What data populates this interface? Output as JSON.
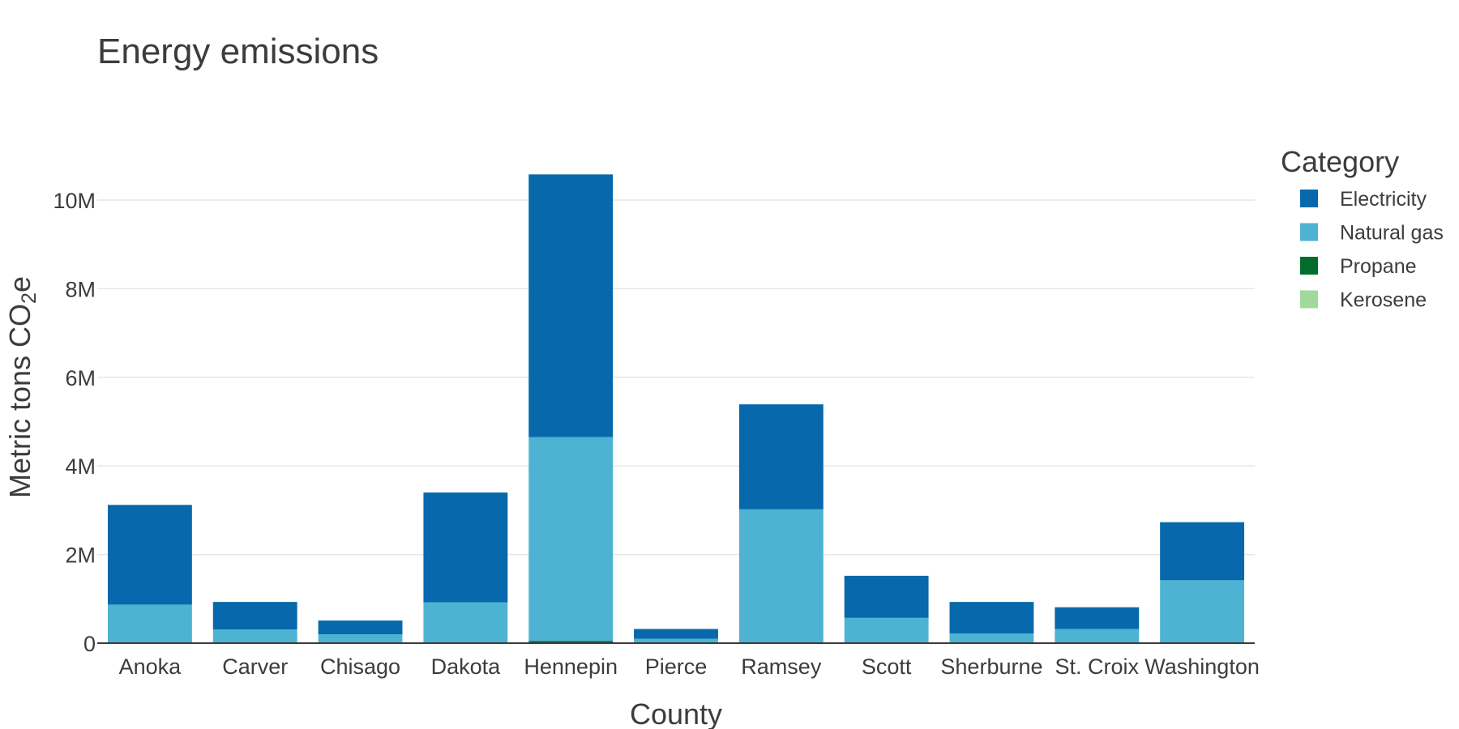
{
  "chart_data": {
    "type": "bar",
    "stacked": true,
    "title": "Energy emissions",
    "xlabel": "County",
    "ylabel": "Metric tons CO2e",
    "ylabel_parts": [
      "Metric tons CO",
      "2",
      "e"
    ],
    "ylim": [
      0,
      11500000
    ],
    "yticks": [
      0,
      2000000,
      4000000,
      6000000,
      8000000,
      10000000
    ],
    "ytick_labels": [
      "0",
      "2M",
      "4M",
      "6M",
      "8M",
      "10M"
    ],
    "grid": true,
    "legend": {
      "title": "Category",
      "position": "right"
    },
    "categories": [
      "Anoka",
      "Carver",
      "Chisago",
      "Dakota",
      "Hennepin",
      "Pierce",
      "Ramsey",
      "Scott",
      "Sherburne",
      "St. Croix",
      "Washington"
    ],
    "series": [
      {
        "name": "Electricity",
        "color": "#0868ac",
        "values": [
          2250000,
          620000,
          310000,
          2480000,
          5930000,
          220000,
          2370000,
          950000,
          710000,
          490000,
          1310000
        ]
      },
      {
        "name": "Natural gas",
        "color": "#4eb3d3",
        "values": [
          870000,
          310000,
          200000,
          920000,
          4600000,
          100000,
          3020000,
          570000,
          220000,
          320000,
          1420000
        ]
      },
      {
        "name": "Propane",
        "color": "#006d2c",
        "values": [
          0,
          0,
          0,
          0,
          50000,
          0,
          0,
          0,
          0,
          0,
          0
        ]
      },
      {
        "name": "Kerosene",
        "color": "#a1d99b",
        "values": [
          0,
          0,
          0,
          0,
          0,
          0,
          0,
          0,
          0,
          0,
          0
        ]
      }
    ]
  }
}
